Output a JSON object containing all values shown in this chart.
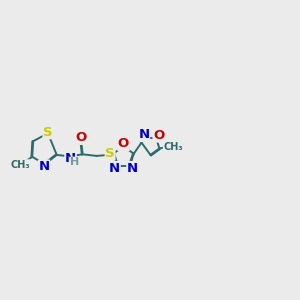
{
  "background_color": "#ebebeb",
  "bond_color": "#2d6b6b",
  "bond_width": 1.4,
  "atom_colors": {
    "S": "#cccc00",
    "N": "#0000cc",
    "O": "#cc0000",
    "H": "#7a9a9a",
    "C": "#2d6b6b"
  },
  "font_size": 8.5,
  "fig_width": 3.0,
  "fig_height": 3.0,
  "dpi": 100
}
